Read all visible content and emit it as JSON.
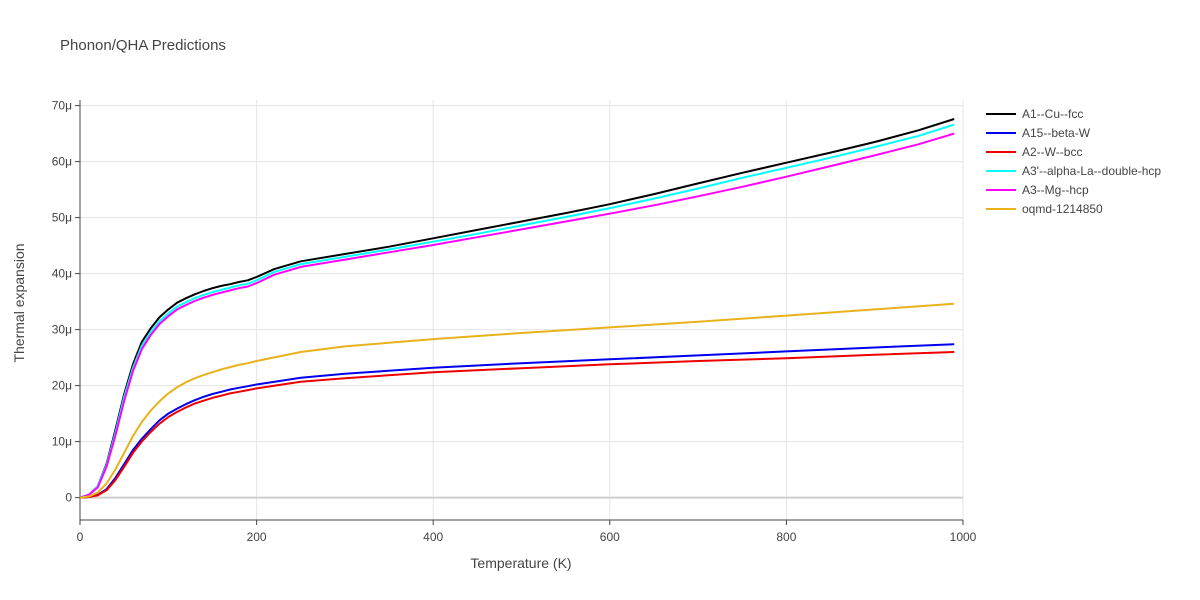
{
  "chart_data": {
    "type": "line",
    "title": "Phonon/QHA Predictions",
    "xlabel": "Temperature (K)",
    "ylabel": "Thermal expansion",
    "xlim": [
      0,
      1000
    ],
    "ylim": [
      -4e-06,
      7.1e-05
    ],
    "x_ticks": [
      0,
      200,
      400,
      600,
      800,
      1000
    ],
    "x_tick_labels": [
      "0",
      "200",
      "400",
      "600",
      "800",
      "1000"
    ],
    "y_ticks": [
      0,
      1e-05,
      2e-05,
      3e-05,
      4e-05,
      5e-05,
      6e-05,
      7e-05
    ],
    "y_tick_labels": [
      "0",
      "10μ",
      "20μ",
      "30μ",
      "40μ",
      "50μ",
      "60μ",
      "70μ"
    ],
    "grid": true,
    "legend_position": "top-right",
    "series": [
      {
        "name": "A1--Cu--fcc",
        "color": "#000000",
        "x": [
          0,
          10,
          20,
          30,
          40,
          50,
          60,
          70,
          80,
          90,
          100,
          110,
          120,
          130,
          140,
          150,
          160,
          170,
          180,
          190,
          200,
          220,
          250,
          300,
          350,
          400,
          450,
          500,
          550,
          600,
          650,
          700,
          750,
          800,
          850,
          900,
          950,
          990
        ],
        "y": [
          0,
          5e-07,
          2e-06,
          6e-06,
          1.2e-05,
          1.85e-05,
          2.38e-05,
          2.78e-05,
          3.02e-05,
          3.22e-05,
          3.36e-05,
          3.48e-05,
          3.56e-05,
          3.63e-05,
          3.69e-05,
          3.74e-05,
          3.78e-05,
          3.81e-05,
          3.85e-05,
          3.88e-05,
          3.94e-05,
          4.08e-05,
          4.22e-05,
          4.35e-05,
          4.48e-05,
          4.63e-05,
          4.78e-05,
          4.93e-05,
          5.08e-05,
          5.24e-05,
          5.42e-05,
          5.61e-05,
          5.8e-05,
          5.98e-05,
          6.16e-05,
          6.35e-05,
          6.56e-05,
          6.76e-05
        ]
      },
      {
        "name": "A15--beta-W",
        "color": "#0000ee",
        "x": [
          0,
          10,
          20,
          30,
          40,
          50,
          60,
          70,
          80,
          90,
          100,
          110,
          120,
          130,
          140,
          150,
          160,
          170,
          180,
          190,
          200,
          250,
          300,
          400,
          500,
          600,
          700,
          800,
          900,
          990
        ],
        "y": [
          0,
          1e-07,
          5e-07,
          1.5e-06,
          3.5e-06,
          6e-06,
          8.5e-06,
          1.05e-05,
          1.22e-05,
          1.38e-05,
          1.5e-05,
          1.59e-05,
          1.67e-05,
          1.74e-05,
          1.8e-05,
          1.85e-05,
          1.89e-05,
          1.93e-05,
          1.96e-05,
          1.99e-05,
          2.02e-05,
          2.14e-05,
          2.21e-05,
          2.32e-05,
          2.4e-05,
          2.47e-05,
          2.54e-05,
          2.61e-05,
          2.68e-05,
          2.74e-05
        ]
      },
      {
        "name": "A2--W--bcc",
        "color": "#ee0000",
        "x": [
          0,
          10,
          20,
          30,
          40,
          50,
          60,
          70,
          80,
          90,
          100,
          110,
          120,
          130,
          140,
          150,
          160,
          170,
          180,
          190,
          200,
          250,
          300,
          400,
          500,
          600,
          700,
          800,
          900,
          990
        ],
        "y": [
          0,
          1e-07,
          4e-07,
          1.3e-06,
          3.1e-06,
          5.5e-06,
          8e-06,
          1e-05,
          1.17e-05,
          1.32e-05,
          1.44e-05,
          1.53e-05,
          1.61e-05,
          1.68e-05,
          1.73e-05,
          1.78e-05,
          1.82e-05,
          1.86e-05,
          1.89e-05,
          1.92e-05,
          1.95e-05,
          2.07e-05,
          2.13e-05,
          2.24e-05,
          2.31e-05,
          2.38e-05,
          2.44e-05,
          2.49e-05,
          2.55e-05,
          2.6e-05
        ]
      },
      {
        "name": "A3'--alpha-La--double-hcp",
        "color": "#00ffff",
        "x": [
          0,
          10,
          20,
          30,
          40,
          50,
          60,
          70,
          80,
          90,
          100,
          110,
          120,
          130,
          140,
          150,
          160,
          170,
          180,
          190,
          200,
          220,
          250,
          300,
          350,
          400,
          450,
          500,
          550,
          600,
          650,
          700,
          750,
          800,
          850,
          900,
          950,
          990
        ],
        "y": [
          0,
          5e-07,
          2e-06,
          5.8e-06,
          1.15e-05,
          1.8e-05,
          2.32e-05,
          2.71e-05,
          2.95e-05,
          3.15e-05,
          3.29e-05,
          3.41e-05,
          3.49e-05,
          3.56e-05,
          3.62e-05,
          3.67e-05,
          3.71e-05,
          3.75e-05,
          3.79e-05,
          3.82e-05,
          3.88e-05,
          4.03e-05,
          4.17e-05,
          4.3e-05,
          4.43e-05,
          4.57e-05,
          4.71e-05,
          4.86e-05,
          5.01e-05,
          5.17e-05,
          5.34e-05,
          5.52e-05,
          5.71e-05,
          5.89e-05,
          6.07e-05,
          6.26e-05,
          6.46e-05,
          6.66e-05
        ]
      },
      {
        "name": "A3--Mg--hcp",
        "color": "#ff00ff",
        "x": [
          0,
          10,
          20,
          30,
          40,
          50,
          60,
          70,
          80,
          90,
          100,
          110,
          120,
          130,
          140,
          150,
          160,
          170,
          180,
          190,
          200,
          220,
          250,
          300,
          350,
          400,
          450,
          500,
          550,
          600,
          650,
          700,
          750,
          800,
          850,
          900,
          950,
          990
        ],
        "y": [
          0,
          5e-07,
          1.8e-06,
          5.5e-06,
          1.1e-05,
          1.73e-05,
          2.26e-05,
          2.65e-05,
          2.9e-05,
          3.1e-05,
          3.24e-05,
          3.36e-05,
          3.44e-05,
          3.51e-05,
          3.57e-05,
          3.62e-05,
          3.66e-05,
          3.7e-05,
          3.74e-05,
          3.77e-05,
          3.83e-05,
          3.98e-05,
          4.12e-05,
          4.25e-05,
          4.38e-05,
          4.51e-05,
          4.65e-05,
          4.79e-05,
          4.93e-05,
          5.07e-05,
          5.22e-05,
          5.38e-05,
          5.55e-05,
          5.73e-05,
          5.92e-05,
          6.11e-05,
          6.31e-05,
          6.5e-05
        ]
      },
      {
        "name": "oqmd-1214850",
        "color": "#e8b21a",
        "x": [
          0,
          10,
          20,
          30,
          40,
          50,
          60,
          70,
          80,
          90,
          100,
          110,
          120,
          130,
          140,
          150,
          160,
          170,
          180,
          190,
          200,
          250,
          300,
          400,
          500,
          600,
          700,
          800,
          900,
          990
        ],
        "y": [
          0,
          2e-07,
          9e-07,
          2.5e-06,
          5e-06,
          8e-06,
          1.1e-05,
          1.35e-05,
          1.55e-05,
          1.72e-05,
          1.86e-05,
          1.97e-05,
          2.06e-05,
          2.13e-05,
          2.19e-05,
          2.24e-05,
          2.29e-05,
          2.33e-05,
          2.37e-05,
          2.4e-05,
          2.44e-05,
          2.6e-05,
          2.7e-05,
          2.83e-05,
          2.94e-05,
          3.04e-05,
          3.14e-05,
          3.25e-05,
          3.36e-05,
          3.46e-05
        ]
      }
    ]
  }
}
